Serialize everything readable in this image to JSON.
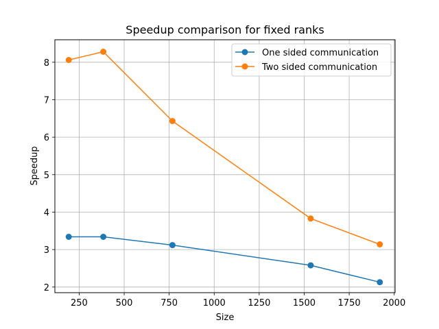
{
  "chart_data": {
    "type": "line",
    "title": "Speedup comparison for fixed ranks",
    "xlabel": "Size",
    "ylabel": "Speedup",
    "xlim": [
      115,
      2005
    ],
    "ylim": [
      1.85,
      8.6
    ],
    "xticks": [
      250,
      500,
      750,
      1000,
      1250,
      1500,
      1750,
      2000
    ],
    "yticks": [
      2,
      3,
      4,
      5,
      6,
      7,
      8
    ],
    "grid": true,
    "legend_position": "top-right",
    "x": [
      192,
      384,
      768,
      1536,
      1920
    ],
    "series": [
      {
        "name": "One sided communication",
        "color": "#1f77b4",
        "values": [
          3.34,
          3.34,
          3.12,
          2.58,
          2.13
        ]
      },
      {
        "name": "Two sided communication",
        "color": "#ff7f0e",
        "values": [
          8.06,
          8.28,
          6.43,
          3.83,
          3.14
        ]
      }
    ]
  }
}
